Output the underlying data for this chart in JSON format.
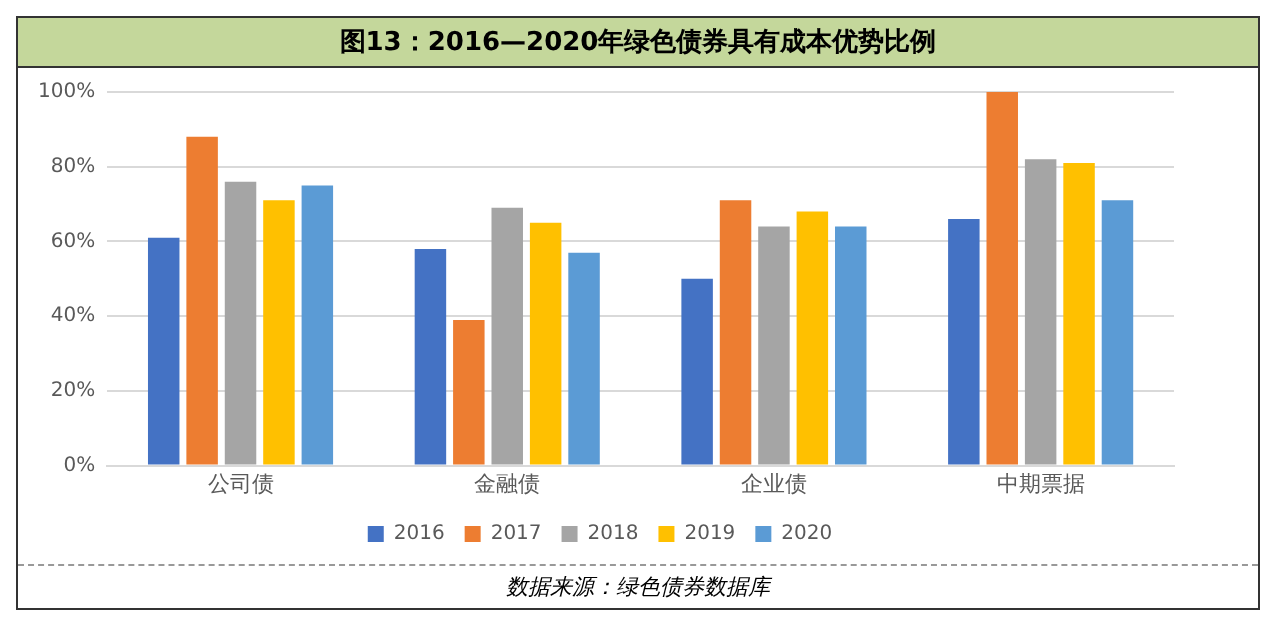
{
  "chart_data": {
    "type": "bar",
    "title": "图13：2016—2020年绿色债券具有成本优势比例",
    "categories": [
      "公司债",
      "金融债",
      "企业债",
      "中期票据"
    ],
    "series": [
      {
        "name": "2016",
        "color": "#4472c4",
        "values": [
          61,
          58,
          50,
          66
        ]
      },
      {
        "name": "2017",
        "color": "#ed7d31",
        "values": [
          88,
          39,
          71,
          100
        ]
      },
      {
        "name": "2018",
        "color": "#a5a5a5",
        "values": [
          76,
          69,
          64,
          82
        ]
      },
      {
        "name": "2019",
        "color": "#ffc000",
        "values": [
          71,
          65,
          68,
          81
        ]
      },
      {
        "name": "2020",
        "color": "#5b9bd5",
        "values": [
          75,
          57,
          64,
          71
        ]
      }
    ],
    "ylim": [
      0,
      100
    ],
    "yticks": [
      {
        "value": 0,
        "label": "0%"
      },
      {
        "value": 20,
        "label": "20%"
      },
      {
        "value": 40,
        "label": "40%"
      },
      {
        "value": 60,
        "label": "60%"
      },
      {
        "value": 80,
        "label": "80%"
      },
      {
        "value": 100,
        "label": "100%"
      }
    ],
    "grid": "y",
    "legend": "bottom",
    "annotations": [
      "数据来源：绿色债券数据库"
    ]
  }
}
